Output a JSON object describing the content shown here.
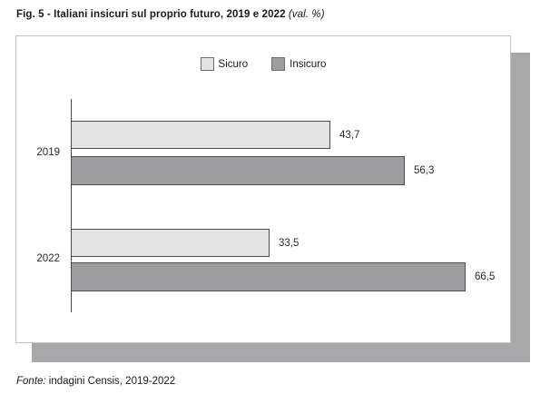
{
  "title": {
    "main": "Fig. 5 - Italiani insicuri sul proprio futuro, 2019 e 2022",
    "suffix": " (val. %)"
  },
  "legend": {
    "items": [
      {
        "label": "Sicuro",
        "color": "#e3e3e3"
      },
      {
        "label": "Insicuro",
        "color": "#9d9da0"
      }
    ]
  },
  "footer": {
    "prefix": "Fonte:",
    "text": " indagini Censis, 2019-2022"
  },
  "chart_data": {
    "type": "bar",
    "orientation": "horizontal",
    "title": "Fig. 5 - Italiani insicuri sul proprio futuro, 2019 e 2022 (val. %)",
    "categories": [
      "2019",
      "2022"
    ],
    "series": [
      {
        "name": "Sicuro",
        "values": [
          43.7,
          33.5
        ],
        "color": "#e3e3e3"
      },
      {
        "name": "Insicuro",
        "values": [
          56.3,
          66.5
        ],
        "color": "#9d9da0"
      }
    ],
    "value_labels": {
      "sicuro_2019": "43,7",
      "insicuro_2019": "56,3",
      "sicuro_2022": "33,5",
      "insicuro_2022": "66,5"
    },
    "xlim": [
      0,
      74
    ],
    "grid": false,
    "legend_position": "top-center",
    "source": "Fonte: indagini Censis, 2019-2022"
  }
}
